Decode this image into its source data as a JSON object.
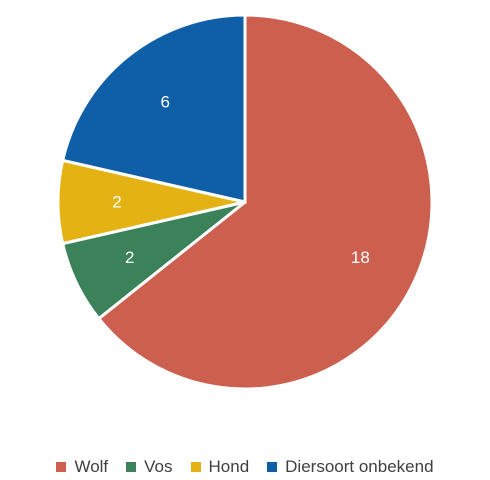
{
  "chart_data": {
    "type": "pie",
    "categories": [
      "Wolf",
      "Vos",
      "Hond",
      "Diersoort onbekend"
    ],
    "values": [
      18,
      2,
      2,
      6
    ],
    "colors": [
      "#CD5F4E",
      "#3B8159",
      "#E5B213",
      "#0E5FA8"
    ],
    "title": "",
    "data_labels": [
      "18",
      "2",
      "2",
      "6"
    ],
    "legend_position": "bottom",
    "start_angle_deg": 0,
    "direction": "clockwise"
  }
}
